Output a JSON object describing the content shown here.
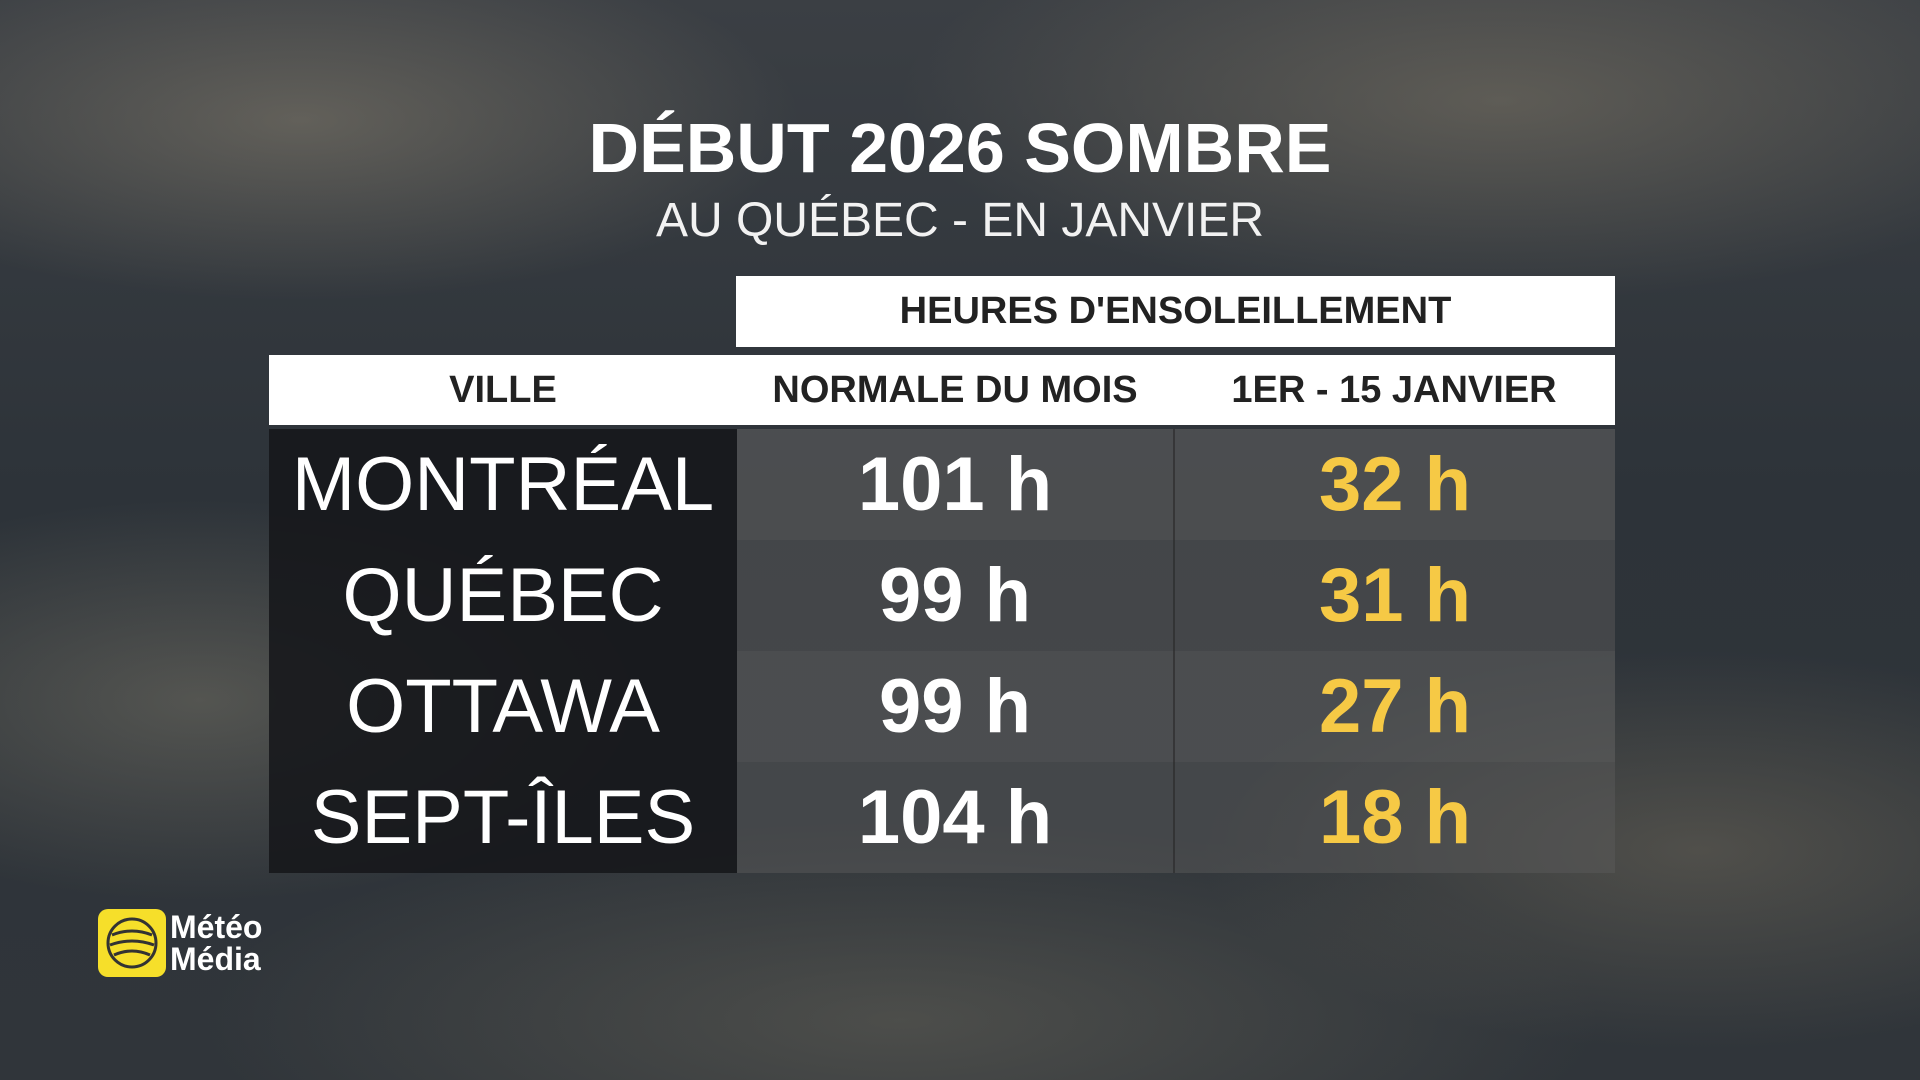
{
  "header": {
    "title": "DÉBUT 2026 SOMBRE",
    "subtitle": "AU QUÉBEC - EN JANVIER"
  },
  "table": {
    "group_header": "HEURES D'ENSOLEILLEMENT",
    "columns": [
      "VILLE",
      "NORMALE DU MOIS",
      "1ER - 15 JANVIER"
    ],
    "rows": [
      [
        "MONTRÉAL",
        "101 h",
        "32 h"
      ],
      [
        "QUÉBEC",
        "99 h",
        "31 h"
      ],
      [
        "OTTAWA",
        "99 h",
        "27 h"
      ],
      [
        "SEPT-ÎLES",
        "104 h",
        "18 h"
      ]
    ]
  },
  "logo": {
    "line1": "Météo",
    "line2": "Média"
  }
}
